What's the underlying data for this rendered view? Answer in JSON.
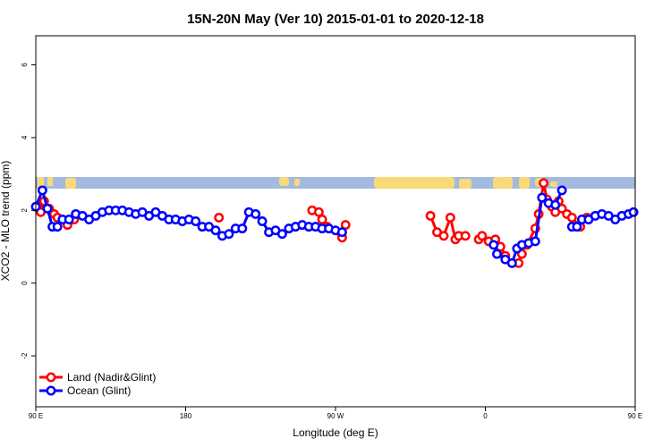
{
  "chart_data": {
    "type": "line",
    "title": "15N-20N May (Ver 10)   2015-01-01 to 2020-12-18",
    "xlabel": "Longitude (deg E)",
    "ylabel": "XCO2 - MLO trend (ppm)",
    "xlim": [
      90,
      450
    ],
    "ylim": [
      -3.4,
      6.8
    ],
    "x_ticks": [
      {
        "value": 90,
        "label": "90 E"
      },
      {
        "value": 180,
        "label": "180"
      },
      {
        "value": 270,
        "label": "90 W"
      },
      {
        "value": 360,
        "label": "0"
      },
      {
        "value": 450,
        "label": "90 E"
      },
      {
        "value": 540,
        "label": "180"
      }
    ],
    "y_ticks": [
      -2,
      0,
      2,
      4,
      6
    ],
    "grid": false,
    "legend_position": "bottom-left",
    "colors": {
      "land": "#ff0000",
      "ocean": "#0000ff",
      "map_land": "#f9d978",
      "map_ocean": "#a3bade"
    },
    "series": [
      {
        "name": "Land (Nadir&Glint)",
        "color": "#ff0000",
        "segments": [
          [
            [
              91,
              2.1
            ],
            [
              93,
              1.95
            ],
            [
              95,
              2.25
            ],
            [
              98,
              2.05
            ],
            [
              101,
              1.9
            ],
            [
              103,
              1.8
            ],
            [
              109,
              1.6
            ],
            [
              113,
              1.75
            ]
          ],
          [
            [
              200,
              1.8
            ]
          ],
          [
            [
              256,
              2.0
            ],
            [
              260,
              1.95
            ],
            [
              262,
              1.75
            ],
            [
              265,
              1.55
            ],
            [
              274,
              1.25
            ],
            [
              276,
              1.6
            ]
          ],
          [
            [
              327,
              1.85
            ],
            [
              331,
              1.4
            ],
            [
              335,
              1.3
            ],
            [
              339,
              1.8
            ],
            [
              342,
              1.2
            ],
            [
              344,
              1.3
            ],
            [
              348,
              1.3
            ]
          ],
          [
            [
              356,
              1.2
            ],
            [
              358,
              1.3
            ],
            [
              362,
              1.15
            ],
            [
              366,
              1.2
            ],
            [
              369,
              1.0
            ],
            [
              372,
              0.75
            ],
            [
              376,
              0.55
            ],
            [
              380,
              0.55
            ],
            [
              382,
              0.8
            ]
          ],
          [
            [
              385,
              1.05
            ],
            [
              390,
              1.5
            ],
            [
              392,
              1.9
            ],
            [
              395,
              2.75
            ],
            [
              397,
              2.3
            ],
            [
              400,
              2.1
            ],
            [
              402,
              1.95
            ],
            [
              404,
              2.25
            ],
            [
              406,
              2.05
            ],
            [
              409,
              1.9
            ],
            [
              412,
              1.8
            ],
            [
              417,
              1.55
            ],
            [
              421,
              1.8
            ]
          ]
        ]
      },
      {
        "name": "Ocean (Glint)",
        "color": "#0000ff",
        "segments": [
          [
            [
              90,
              2.1
            ],
            [
              94,
              2.55
            ],
            [
              97,
              2.05
            ],
            [
              100,
              1.55
            ],
            [
              103,
              1.55
            ],
            [
              106,
              1.75
            ],
            [
              110,
              1.75
            ],
            [
              114,
              1.9
            ],
            [
              118,
              1.85
            ],
            [
              122,
              1.75
            ],
            [
              126,
              1.85
            ],
            [
              130,
              1.95
            ],
            [
              134,
              2.0
            ],
            [
              138,
              2.0
            ],
            [
              142,
              2.0
            ],
            [
              146,
              1.95
            ],
            [
              150,
              1.9
            ],
            [
              154,
              1.95
            ],
            [
              158,
              1.85
            ],
            [
              162,
              1.95
            ],
            [
              166,
              1.85
            ],
            [
              170,
              1.75
            ],
            [
              174,
              1.75
            ],
            [
              178,
              1.7
            ],
            [
              182,
              1.75
            ],
            [
              186,
              1.7
            ],
            [
              190,
              1.55
            ],
            [
              194,
              1.55
            ],
            [
              198,
              1.45
            ],
            [
              202,
              1.3
            ],
            [
              206,
              1.35
            ],
            [
              210,
              1.5
            ],
            [
              214,
              1.5
            ],
            [
              218,
              1.95
            ],
            [
              222,
              1.9
            ],
            [
              226,
              1.7
            ],
            [
              230,
              1.4
            ],
            [
              234,
              1.45
            ],
            [
              238,
              1.35
            ],
            [
              242,
              1.5
            ],
            [
              246,
              1.55
            ],
            [
              250,
              1.6
            ],
            [
              254,
              1.55
            ],
            [
              258,
              1.55
            ],
            [
              262,
              1.5
            ],
            [
              266,
              1.5
            ],
            [
              270,
              1.45
            ],
            [
              274,
              1.4
            ]
          ],
          [
            [
              365,
              1.05
            ],
            [
              367,
              0.8
            ],
            [
              372,
              0.65
            ],
            [
              376,
              0.55
            ],
            [
              379,
              0.95
            ],
            [
              382,
              1.05
            ],
            [
              386,
              1.1
            ],
            [
              390,
              1.15
            ],
            [
              394,
              2.35
            ],
            [
              398,
              2.2
            ],
            [
              402,
              2.15
            ],
            [
              406,
              2.55
            ]
          ],
          [
            [
              412,
              1.55
            ],
            [
              415,
              1.55
            ],
            [
              418,
              1.75
            ],
            [
              422,
              1.75
            ],
            [
              426,
              1.85
            ],
            [
              430,
              1.9
            ],
            [
              434,
              1.85
            ],
            [
              438,
              1.75
            ],
            [
              442,
              1.85
            ],
            [
              446,
              1.9
            ],
            [
              449,
              1.95
            ]
          ]
        ]
      }
    ]
  }
}
